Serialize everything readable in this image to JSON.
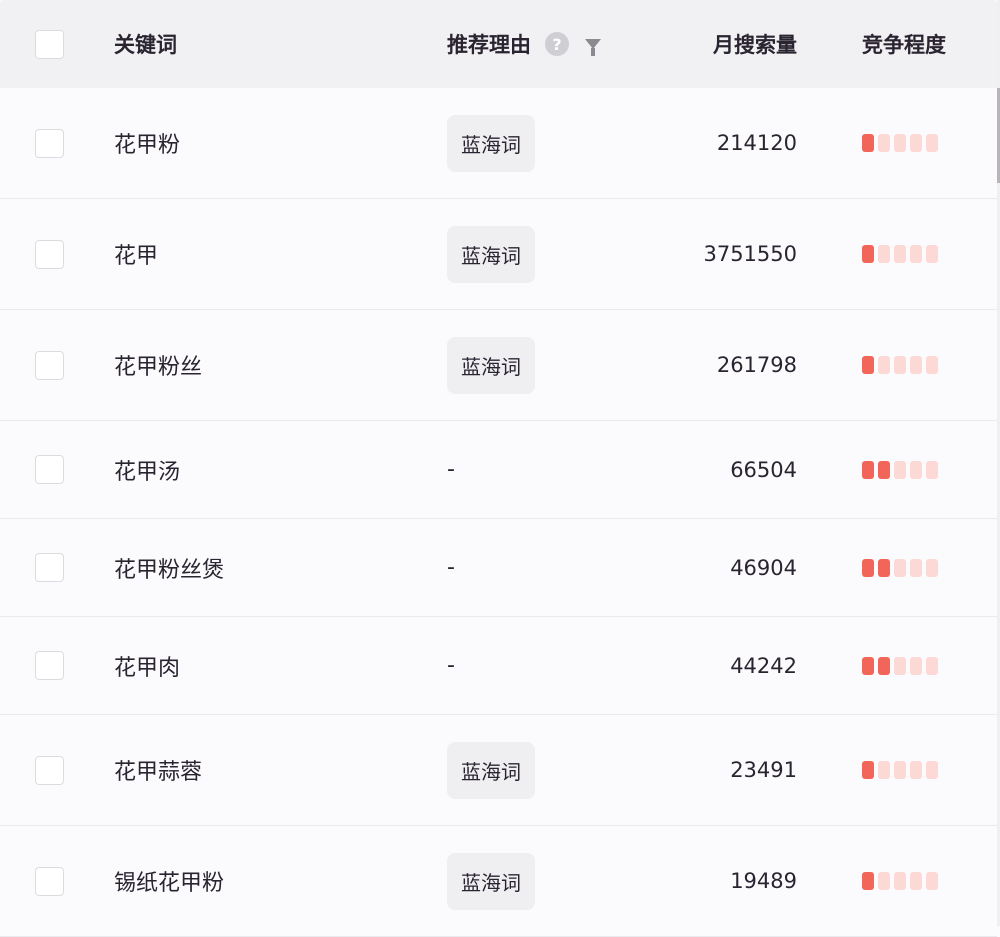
{
  "header": {
    "keyword": "关键词",
    "reason": "推荐理由",
    "volume": "月搜索量",
    "competition": "竞争程度"
  },
  "colors": {
    "competition_on": "#f2665a",
    "competition_off": "#fdd9d6"
  },
  "competition_max": 5,
  "rows": [
    {
      "keyword": "花甲粉",
      "reason": "蓝海词",
      "volume": "214120",
      "competition": 1
    },
    {
      "keyword": "花甲",
      "reason": "蓝海词",
      "volume": "3751550",
      "competition": 1
    },
    {
      "keyword": "花甲粉丝",
      "reason": "蓝海词",
      "volume": "261798",
      "competition": 1
    },
    {
      "keyword": "花甲汤",
      "reason": "-",
      "volume": "66504",
      "competition": 2
    },
    {
      "keyword": "花甲粉丝煲",
      "reason": "-",
      "volume": "46904",
      "competition": 2
    },
    {
      "keyword": "花甲肉",
      "reason": "-",
      "volume": "44242",
      "competition": 2
    },
    {
      "keyword": "花甲蒜蓉",
      "reason": "蓝海词",
      "volume": "23491",
      "competition": 1
    },
    {
      "keyword": "锡纸花甲粉",
      "reason": "蓝海词",
      "volume": "19489",
      "competition": 1
    }
  ]
}
